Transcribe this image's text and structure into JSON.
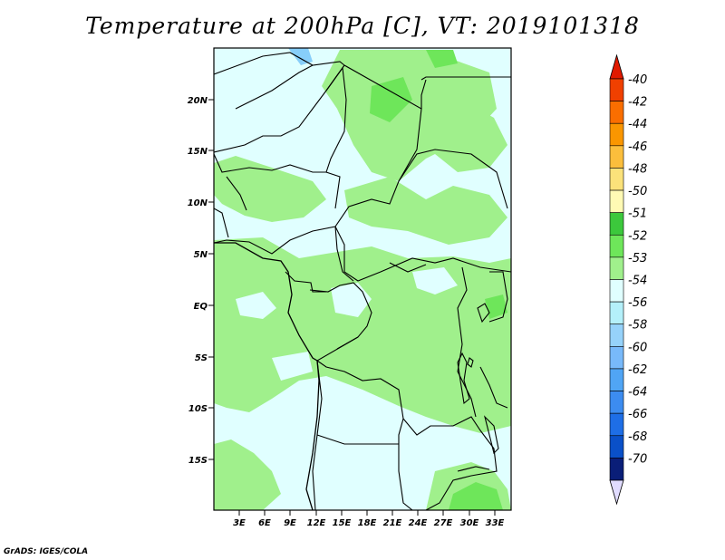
{
  "title": "Temperature at 200hPa [C], VT: 2019101318",
  "credit": "GrADS: IGES/COLA",
  "map": {
    "lat_ticks": [
      "20N",
      "15N",
      "10N",
      "5N",
      "EQ",
      "5S",
      "10S",
      "15S"
    ],
    "lon_ticks": [
      "3E",
      "6E",
      "9E",
      "12E",
      "15E",
      "18E",
      "21E",
      "24E",
      "27E",
      "30E",
      "33E"
    ],
    "colors": {
      "background_band": "#e0ffff",
      "warm_band": "#a0f08c",
      "warmer_band": "#6ee65a",
      "water": "#87cefa",
      "boundary": "#000000"
    }
  },
  "colorbar": {
    "levels": [
      "-40",
      "-42",
      "-44",
      "-46",
      "-48",
      "-50",
      "-51",
      "-52",
      "-53",
      "-54",
      "-56",
      "-58",
      "-60",
      "-62",
      "-64",
      "-66",
      "-68",
      "-70"
    ],
    "colors": [
      "#e11a00",
      "#f04000",
      "#fa6e00",
      "#fa9600",
      "#fbbe3c",
      "#fbe27a",
      "#fffab4",
      "#3cc83c",
      "#6ee65a",
      "#a0f08c",
      "#e0ffff",
      "#b4f0fa",
      "#96d2fa",
      "#78b9fa",
      "#50a5f5",
      "#3c8cf0",
      "#1e6ee6",
      "#0a50c8",
      "#0a1e78",
      "#e1dcff"
    ]
  }
}
